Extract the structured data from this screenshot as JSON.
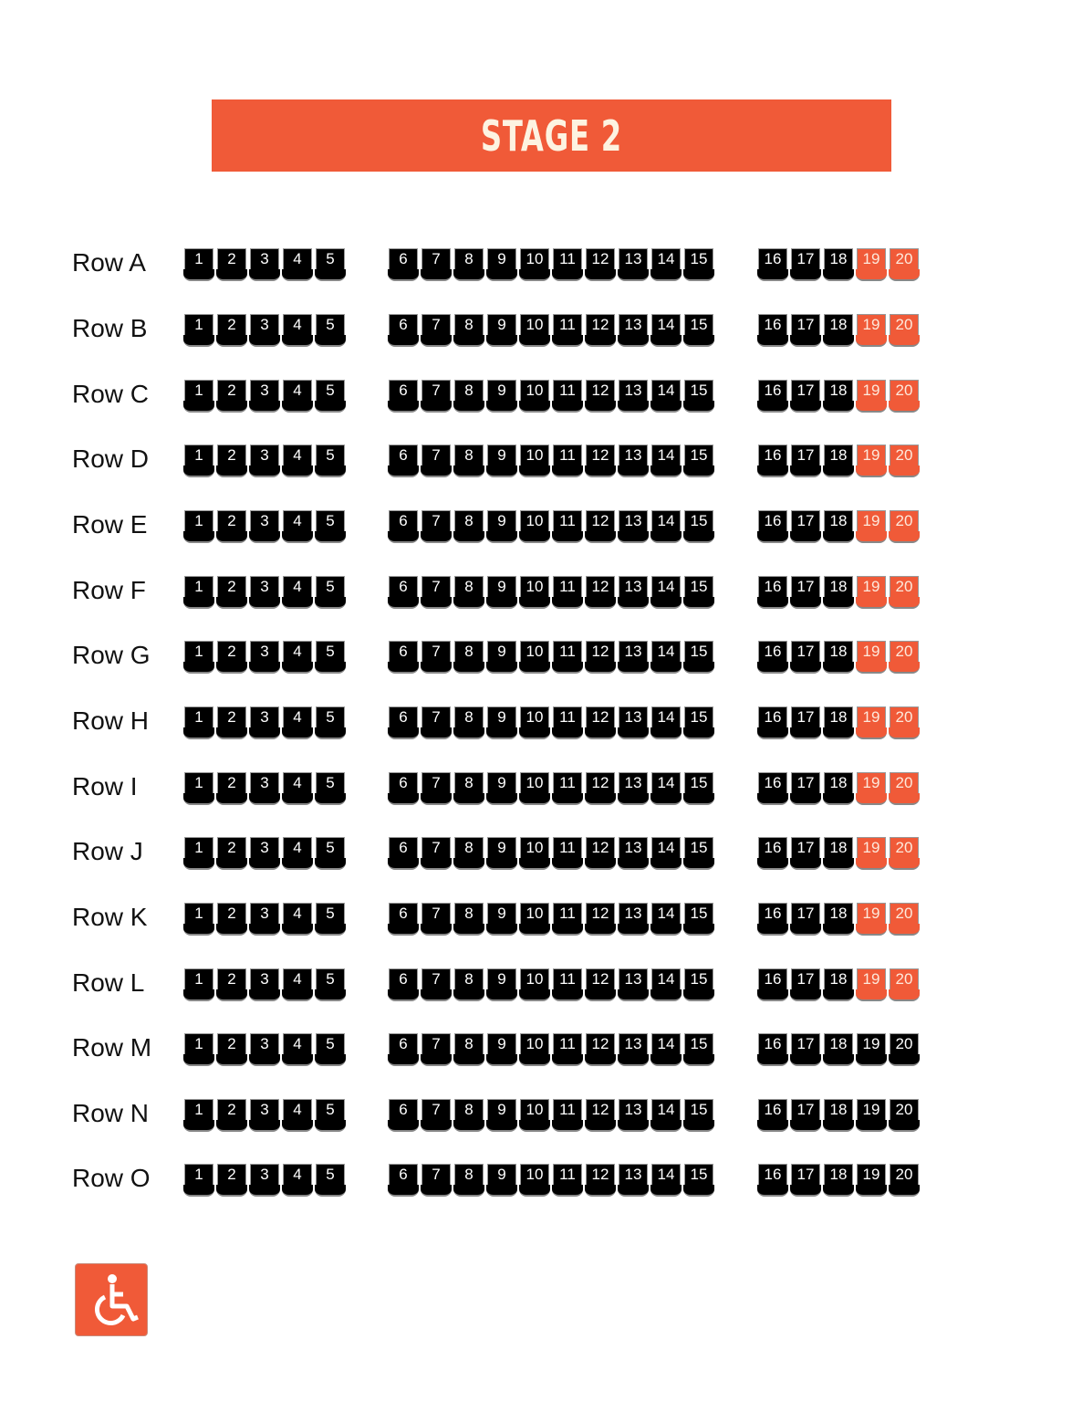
{
  "stage": {
    "title": "STAGE 2"
  },
  "colors": {
    "accent": "#f05a38",
    "seat": "#000000",
    "stage_text": "#fdf3e1"
  },
  "legend": {
    "icon": "wheelchair-icon"
  },
  "blocks": [
    {
      "name": "left",
      "seats": [
        1,
        2,
        3,
        4,
        5
      ]
    },
    {
      "name": "center",
      "seats": [
        6,
        7,
        8,
        9,
        10,
        11,
        12,
        13,
        14,
        15
      ]
    },
    {
      "name": "right",
      "seats": [
        16,
        17,
        18,
        19,
        20
      ]
    }
  ],
  "rows": [
    {
      "label": "Row A",
      "accessible": [
        19,
        20
      ]
    },
    {
      "label": "Row B",
      "accessible": [
        19,
        20
      ]
    },
    {
      "label": "Row C",
      "accessible": [
        19,
        20
      ]
    },
    {
      "label": "Row D",
      "accessible": [
        19,
        20
      ]
    },
    {
      "label": "Row E",
      "accessible": [
        19,
        20
      ]
    },
    {
      "label": "Row F",
      "accessible": [
        19,
        20
      ]
    },
    {
      "label": "Row G",
      "accessible": [
        19,
        20
      ]
    },
    {
      "label": "Row H",
      "accessible": [
        19,
        20
      ]
    },
    {
      "label": "Row I",
      "accessible": [
        19,
        20
      ]
    },
    {
      "label": "Row J",
      "accessible": [
        19,
        20
      ]
    },
    {
      "label": "Row K",
      "accessible": [
        19,
        20
      ]
    },
    {
      "label": "Row L",
      "accessible": [
        19,
        20
      ]
    },
    {
      "label": "Row M",
      "accessible": []
    },
    {
      "label": "Row N",
      "accessible": []
    },
    {
      "label": "Row O",
      "accessible": []
    }
  ]
}
